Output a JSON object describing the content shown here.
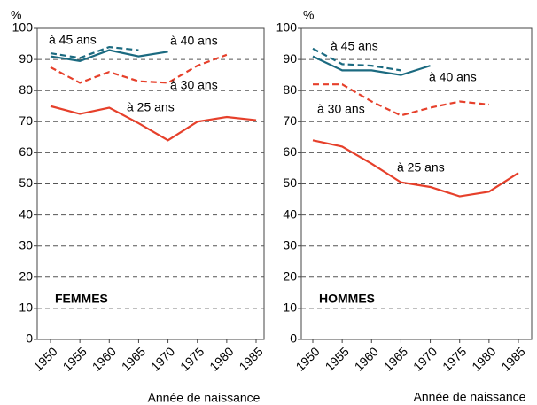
{
  "chart_data": [
    {
      "type": "line",
      "panel_label": "FEMMES",
      "ylabel": "%",
      "xlabel": "Année de naissance",
      "x": [
        1950,
        1955,
        1960,
        1965,
        1970,
        1975,
        1980,
        1985
      ],
      "xlim": [
        1950,
        1985
      ],
      "xticks": [
        1950,
        1955,
        1960,
        1965,
        1970,
        1975,
        1980,
        1985
      ],
      "ylim": [
        0,
        100
      ],
      "yticks": [
        0,
        10,
        20,
        30,
        40,
        50,
        60,
        70,
        80,
        90,
        100
      ],
      "grid": true,
      "series": [
        {
          "name": "à 45 ans",
          "color": "#1b6a80",
          "dashed": true,
          "values": [
            92,
            90.5,
            94,
            93,
            null,
            null,
            null,
            null
          ]
        },
        {
          "name": "à 40 ans",
          "color": "#1b6a80",
          "dashed": false,
          "values": [
            91,
            89.5,
            93,
            91,
            92.5,
            null,
            null,
            null
          ]
        },
        {
          "name": "à 30 ans",
          "color": "#e6402b",
          "dashed": true,
          "values": [
            87.5,
            82.5,
            86,
            83,
            82.5,
            88,
            91.5,
            null
          ]
        },
        {
          "name": "à 25 ans",
          "color": "#e6402b",
          "dashed": false,
          "values": [
            75,
            72.5,
            74.5,
            69.5,
            64,
            70,
            71.5,
            70.5
          ]
        }
      ]
    },
    {
      "type": "line",
      "panel_label": "HOMMES",
      "ylabel": "%",
      "xlabel": "Année de naissance",
      "x": [
        1950,
        1955,
        1960,
        1965,
        1970,
        1975,
        1980,
        1985
      ],
      "xlim": [
        1950,
        1985
      ],
      "xticks": [
        1950,
        1955,
        1960,
        1965,
        1970,
        1975,
        1980,
        1985
      ],
      "ylim": [
        0,
        100
      ],
      "yticks": [
        0,
        10,
        20,
        30,
        40,
        50,
        60,
        70,
        80,
        90,
        100
      ],
      "grid": true,
      "series": [
        {
          "name": "à 45 ans",
          "color": "#1b6a80",
          "dashed": true,
          "values": [
            93.5,
            88.5,
            88,
            86.5,
            null,
            null,
            null,
            null
          ]
        },
        {
          "name": "à 40 ans",
          "color": "#1b6a80",
          "dashed": false,
          "values": [
            91,
            86.5,
            86.5,
            85,
            88,
            null,
            null,
            null
          ]
        },
        {
          "name": "à 30 ans",
          "color": "#e6402b",
          "dashed": true,
          "values": [
            82,
            82,
            76.5,
            72,
            74.5,
            76.5,
            75.5,
            null
          ]
        },
        {
          "name": "à 25 ans",
          "color": "#e6402b",
          "dashed": false,
          "values": [
            64,
            62,
            56.5,
            50.5,
            49,
            46,
            47.5,
            53.5
          ]
        }
      ]
    }
  ]
}
